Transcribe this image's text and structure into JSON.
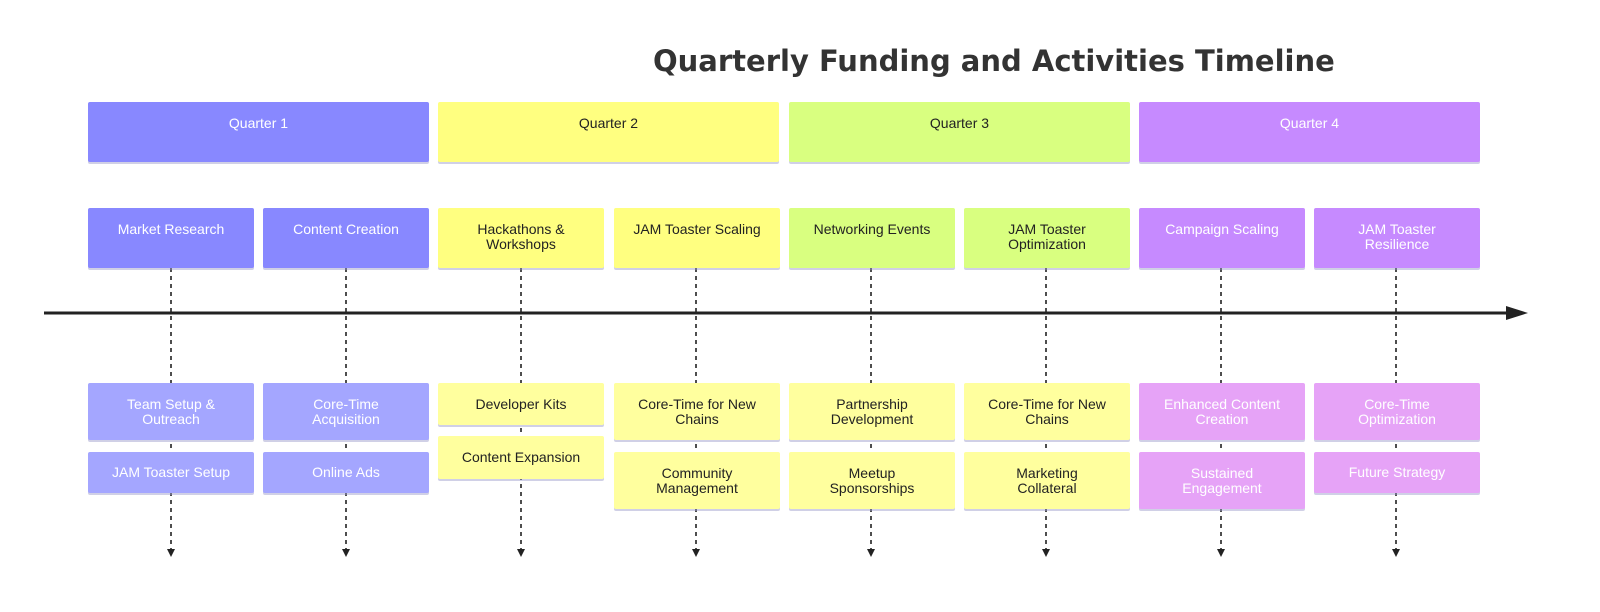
{
  "title": "Quarterly Funding and Activities Timeline",
  "colors": {
    "q1": "#8888ff",
    "q1_light": "#a4a6ff",
    "q2": "#ffff80",
    "q2_light": "#ffff9e",
    "q3": "#d9ff80",
    "q3_light": "#ffff9e",
    "q4": "#c68aff",
    "q4_light": "#e6a3f7",
    "axis": "#222222"
  },
  "quarters": [
    {
      "label": "Quarter 1"
    },
    {
      "label": "Quarter 2"
    },
    {
      "label": "Quarter 3"
    },
    {
      "label": "Quarter 4"
    }
  ],
  "columns": [
    {
      "top": "Market Research",
      "items": [
        "Team Setup & Outreach",
        "JAM Toaster Setup"
      ]
    },
    {
      "top": "Content Creation",
      "items": [
        "Core-Time Acquisition",
        "Online Ads"
      ]
    },
    {
      "top": "Hackathons & Workshops",
      "items": [
        "Developer Kits",
        "Content Expansion"
      ]
    },
    {
      "top": "JAM Toaster Scaling",
      "items": [
        "Core-Time for New Chains",
        "Community Management"
      ]
    },
    {
      "top": "Networking Events",
      "items": [
        "Partnership Development",
        "Meetup Sponsorships"
      ]
    },
    {
      "top": "JAM Toaster Optimization",
      "items": [
        "Core-Time for New Chains",
        "Marketing Collateral"
      ]
    },
    {
      "top": "Campaign Scaling",
      "items": [
        "Enhanced Content Creation",
        "Sustained Engagement"
      ]
    },
    {
      "top": "JAM Toaster Resilience",
      "items": [
        "Core-Time Optimization",
        "Future Strategy"
      ]
    }
  ]
}
